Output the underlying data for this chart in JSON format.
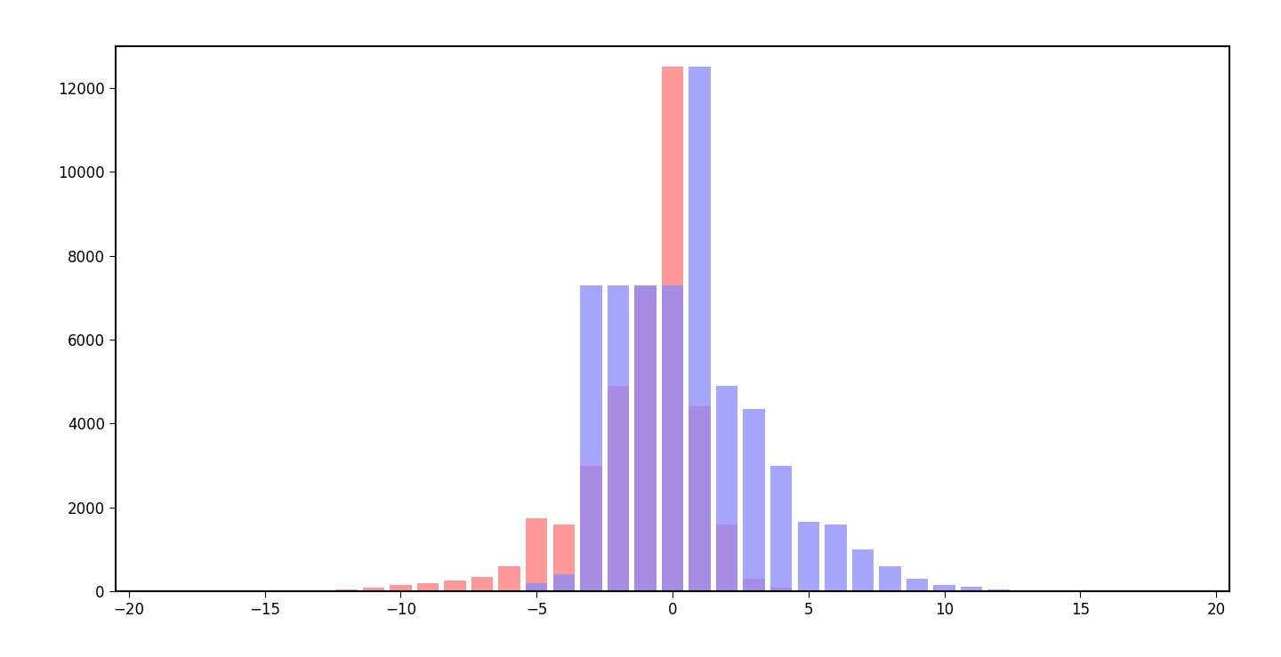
{
  "title": "",
  "xlim": [
    -20.5,
    20.5
  ],
  "ylim": [
    0,
    13000
  ],
  "yticks": [
    0,
    2000,
    4000,
    6000,
    8000,
    10000,
    12000
  ],
  "xticks": [
    -20,
    -15,
    -10,
    -5,
    0,
    5,
    10,
    15,
    20
  ],
  "bin_width": 0.8,
  "color_y": "#FF7777",
  "color_a": "#8888FF",
  "alpha_y": 0.75,
  "alpha_a": 0.75,
  "bins_centers": [
    -19,
    -18,
    -17,
    -16,
    -15,
    -14,
    -13,
    -12,
    -11,
    -10,
    -9,
    -8,
    -7,
    -6,
    -5,
    -4,
    -3,
    -2,
    -1,
    0,
    1,
    2,
    3,
    4,
    5,
    6,
    7,
    8,
    9,
    10,
    11,
    12,
    13,
    14,
    15,
    16,
    17,
    18,
    19
  ],
  "y_values": [
    30,
    10,
    10,
    10,
    10,
    10,
    10,
    50,
    80,
    150,
    200,
    250,
    350,
    600,
    1750,
    1600,
    3000,
    4900,
    7300,
    12500,
    4400,
    1600,
    300,
    80,
    20,
    5,
    0,
    0,
    0,
    0,
    0,
    0,
    0,
    0,
    0,
    0,
    0,
    0,
    0
  ],
  "a_values": [
    0,
    0,
    0,
    0,
    0,
    0,
    0,
    0,
    0,
    0,
    0,
    0,
    0,
    0,
    200,
    400,
    7300,
    7300,
    7300,
    7300,
    12500,
    4900,
    4350,
    3000,
    1650,
    1600,
    1000,
    600,
    300,
    150,
    100,
    50,
    20,
    10,
    5,
    0,
    0,
    0,
    0
  ],
  "background_color": "#ffffff",
  "plot_bg": "#ffffff",
  "outer_bg": "#ffffff",
  "frame_color": "#000000",
  "frame_linewidth": 1.5,
  "tick_labelsize": 12
}
